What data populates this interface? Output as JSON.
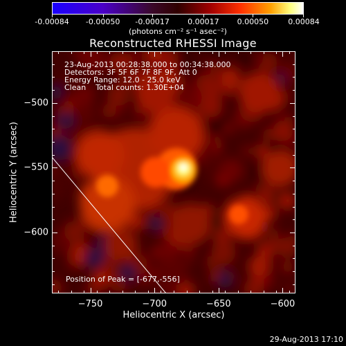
{
  "colorbar": {
    "tick_labels": [
      "-0.00084",
      "-0.00050",
      "-0.00017",
      "0.00017",
      "0.00050",
      "0.00084"
    ],
    "units": "(photons cm⁻² s⁻¹ asec⁻²)",
    "range": [
      -0.00084,
      0.00084
    ]
  },
  "chart_data": {
    "type": "heatmap",
    "title": "Reconstructed RHESSI Image",
    "xlabel": "Heliocentric X (arcsec)",
    "ylabel": "Heliocentric Y (arcsec)",
    "xlim": [
      -780,
      -590
    ],
    "ylim": [
      -647,
      -460
    ],
    "x_ticks": [
      -750,
      -700,
      -650,
      -600
    ],
    "y_ticks": [
      -500,
      -550,
      -600
    ],
    "x_tick_labels": [
      "−750",
      "−700",
      "−650",
      "−600"
    ],
    "y_tick_labels": [
      "−500",
      "−550",
      "−600"
    ],
    "peak": {
      "x": -677,
      "y": -556
    },
    "colormap": "std_gamma_II (black-purple-red-yellow-white)"
  },
  "info": {
    "time_range": "23-Aug-2013 00:28:38.000 to 00:34:38.000",
    "detectors": "Detectors: 3F 5F 6F 7F 8F 9F, Att 0",
    "energy": "Energy Range: 12.0 - 25.0 keV",
    "clean": "Clean    Total counts: 1.30E+04"
  },
  "peak_label": "Position of Peak = [-677,-556]",
  "footer_date": "29-Aug-2013 17:10"
}
